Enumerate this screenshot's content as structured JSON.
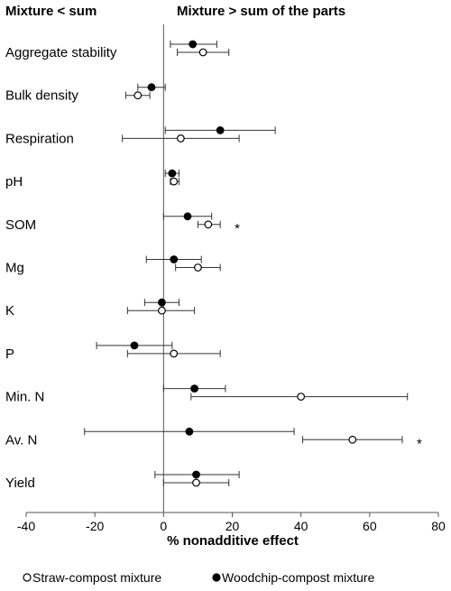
{
  "chart_data": {
    "type": "scatter",
    "header_left": "Mixture < sum",
    "header_right": "Mixture > sum of the parts",
    "xlabel": "% nonadditive effect",
    "xlim": [
      -40,
      80
    ],
    "xticks": [
      "-40",
      "-20",
      "0",
      "20",
      "40",
      "60",
      "80"
    ],
    "categories": [
      "Aggregate stability",
      "Bulk density",
      "Respiration",
      "pH",
      "SOM",
      "Mg",
      "K",
      "P",
      "Min. N",
      "Av. N",
      "Yield"
    ],
    "series": [
      {
        "name": "Woodchip-compost mixture",
        "marker": "filled",
        "points": [
          {
            "value": 8.5,
            "lower": 2,
            "upper": 15.5
          },
          {
            "value": -3.5,
            "lower": -7.5,
            "upper": 0.5
          },
          {
            "value": 16.5,
            "lower": 0.5,
            "upper": 32.5
          },
          {
            "value": 2.5,
            "lower": 0.5,
            "upper": 4.5
          },
          {
            "value": 7,
            "lower": 0,
            "upper": 14
          },
          {
            "value": 3,
            "lower": -5,
            "upper": 11
          },
          {
            "value": -0.5,
            "lower": -5.5,
            "upper": 4.5
          },
          {
            "value": -8.5,
            "lower": -19.5,
            "upper": 2.5
          },
          {
            "value": 9,
            "lower": 0,
            "upper": 18
          },
          {
            "value": 7.5,
            "lower": -23,
            "upper": 38
          },
          {
            "value": 9.5,
            "lower": -2.5,
            "upper": 22
          }
        ]
      },
      {
        "name": "Straw-compost mixture",
        "marker": "open",
        "points": [
          {
            "value": 11.5,
            "lower": 4,
            "upper": 19
          },
          {
            "value": -7.5,
            "lower": -11,
            "upper": -4
          },
          {
            "value": 5,
            "lower": -12,
            "upper": 22
          },
          {
            "value": 3,
            "lower": 2,
            "upper": 4.5
          },
          {
            "value": 13,
            "lower": 10,
            "upper": 16.5
          },
          {
            "value": 10,
            "lower": 3.5,
            "upper": 16.5
          },
          {
            "value": -0.5,
            "lower": -10.5,
            "upper": 9
          },
          {
            "value": 3,
            "lower": -10.5,
            "upper": 16.5
          },
          {
            "value": 40,
            "lower": 8,
            "upper": 71
          },
          {
            "value": 55,
            "lower": 40.5,
            "upper": 69.5
          },
          {
            "value": 9.5,
            "lower": 0,
            "upper": 19
          }
        ]
      }
    ],
    "annotations": [
      {
        "category": "SOM",
        "text": "*"
      },
      {
        "category": "Av. N",
        "text": "*"
      }
    ],
    "legend": [
      {
        "label": "Straw-compost mixture",
        "marker": "open"
      },
      {
        "label": "Woodchip-compost mixture",
        "marker": "filled"
      }
    ],
    "legend_position": "bottom"
  }
}
